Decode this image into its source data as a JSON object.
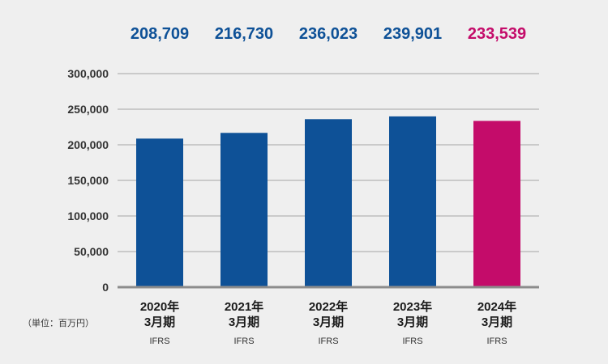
{
  "chart_data": {
    "type": "bar",
    "categories": [
      "2020年",
      "2021年",
      "2022年",
      "2023年",
      "2024年"
    ],
    "period_label": "3月期",
    "standard_label": "IFRS",
    "values": [
      208709,
      216730,
      236023,
      239901,
      233539
    ],
    "value_labels": [
      "208,709",
      "216,730",
      "236,023",
      "239,901",
      "233,539"
    ],
    "ylim": [
      0,
      300000
    ],
    "yticks": [
      0,
      50000,
      100000,
      150000,
      200000,
      250000,
      300000
    ],
    "ytick_labels": [
      "0",
      "50,000",
      "100,000",
      "150,000",
      "200,000",
      "250,000",
      "300,000"
    ],
    "unit_label": "（単位：百万円）",
    "grid": true,
    "colors": {
      "default": "#0e5197",
      "highlight": "#c40c6a",
      "grid": "#a6a6a6",
      "axis": "#8c8c8c",
      "background": "#efefef"
    },
    "highlight_index": 4
  }
}
